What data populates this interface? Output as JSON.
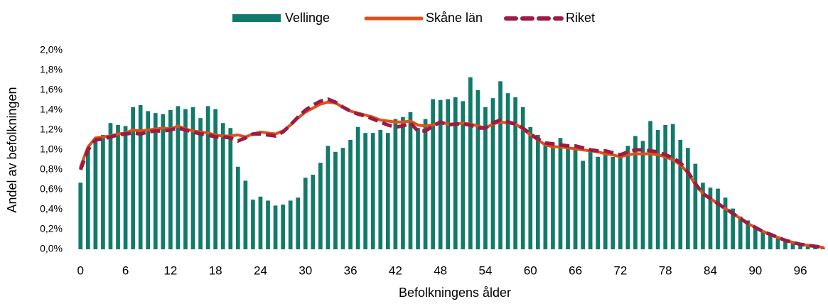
{
  "chart_data": {
    "type": "bar",
    "x_label": "Befolkningens ålder",
    "y_label": "Andel av befolkningen",
    "categories": [
      "0",
      null,
      null,
      null,
      null,
      null,
      "6",
      null,
      null,
      null,
      null,
      null,
      "12",
      null,
      null,
      null,
      null,
      null,
      "18",
      null,
      null,
      null,
      null,
      null,
      "24",
      null,
      null,
      null,
      null,
      null,
      "30",
      null,
      null,
      null,
      null,
      null,
      "36",
      null,
      null,
      null,
      null,
      null,
      "42",
      null,
      null,
      null,
      null,
      null,
      "48",
      null,
      null,
      null,
      null,
      null,
      "54",
      null,
      null,
      null,
      null,
      null,
      "60",
      null,
      null,
      null,
      null,
      null,
      "66",
      null,
      null,
      null,
      null,
      null,
      "72",
      null,
      null,
      null,
      null,
      null,
      "78",
      null,
      null,
      null,
      null,
      null,
      "84",
      null,
      null,
      null,
      null,
      null,
      "90",
      null,
      null,
      null,
      null,
      null,
      "96",
      null,
      null,
      null
    ],
    "ylim": [
      0,
      2
    ],
    "yticks": [
      {
        "value": 0,
        "label": "0,0%"
      },
      {
        "value": 0.2,
        "label": "0,2%"
      },
      {
        "value": 0.4,
        "label": "0,4%"
      },
      {
        "value": 0.6,
        "label": "0,6%"
      },
      {
        "value": 0.8,
        "label": "0,8%"
      },
      {
        "value": 1,
        "label": "1,0%"
      },
      {
        "value": 1.2,
        "label": "1,2%"
      },
      {
        "value": 1.4,
        "label": "1,4%"
      },
      {
        "value": 1.6,
        "label": "1,6%"
      },
      {
        "value": 1.8,
        "label": "1,8%"
      },
      {
        "value": 2,
        "label": "2,0%"
      }
    ],
    "legend": "top",
    "series": [
      {
        "name": "Vellinge",
        "type": "bar",
        "color": "#127a6b",
        "values": [
          0.67,
          1.02,
          1.1,
          1.15,
          1.27,
          1.25,
          1.24,
          1.43,
          1.45,
          1.39,
          1.37,
          1.36,
          1.4,
          1.44,
          1.41,
          1.43,
          1.32,
          1.44,
          1.41,
          1.27,
          1.22,
          0.83,
          0.69,
          0.5,
          0.53,
          0.49,
          0.44,
          0.45,
          0.49,
          0.52,
          0.72,
          0.75,
          0.87,
          1.04,
          0.98,
          1.02,
          1.1,
          1.23,
          1.17,
          1.17,
          1.2,
          1.17,
          1.31,
          1.33,
          1.38,
          1.22,
          1.31,
          1.51,
          1.5,
          1.51,
          1.53,
          1.49,
          1.73,
          1.6,
          1.43,
          1.52,
          1.69,
          1.57,
          1.53,
          1.43,
          1.23,
          1.15,
          1.07,
          1.05,
          1.12,
          1.03,
          1.03,
          0.89,
          0.98,
          0.93,
          0.96,
          0.93,
          0.94,
          1.04,
          1.14,
          1.09,
          1.29,
          1.2,
          1.25,
          1.26,
          1.1,
          1.02,
          0.86,
          0.67,
          0.62,
          0.61,
          0.52,
          0.41,
          0.33,
          0.29,
          0.23,
          0.19,
          0.16,
          0.13,
          0.1,
          0.08,
          0.06,
          0.04,
          0.03,
          0.02
        ]
      },
      {
        "name": "Skåne län",
        "type": "line",
        "color": "#e0501b",
        "values": [
          0.83,
          1.03,
          1.12,
          1.13,
          1.14,
          1.16,
          1.17,
          1.2,
          1.19,
          1.2,
          1.21,
          1.22,
          1.21,
          1.24,
          1.21,
          1.19,
          1.18,
          1.17,
          1.15,
          1.14,
          1.14,
          1.15,
          1.13,
          1.16,
          1.18,
          1.17,
          1.16,
          1.19,
          1.25,
          1.32,
          1.38,
          1.42,
          1.46,
          1.48,
          1.47,
          1.43,
          1.39,
          1.37,
          1.35,
          1.33,
          1.3,
          1.29,
          1.28,
          1.28,
          1.29,
          1.25,
          1.24,
          1.25,
          1.28,
          1.26,
          1.26,
          1.27,
          1.26,
          1.24,
          1.22,
          1.26,
          1.28,
          1.27,
          1.26,
          1.21,
          1.15,
          1.1,
          1.05,
          1.03,
          1.03,
          1.02,
          1.01,
          1.0,
          0.99,
          0.98,
          0.96,
          0.95,
          0.93,
          0.95,
          0.96,
          0.96,
          0.96,
          0.95,
          0.93,
          0.9,
          0.85,
          0.77,
          0.65,
          0.56,
          0.51,
          0.46,
          0.41,
          0.36,
          0.31,
          0.26,
          0.22,
          0.18,
          0.15,
          0.12,
          0.09,
          0.07,
          0.05,
          0.04,
          0.03,
          0.02
        ]
      },
      {
        "name": "Riket",
        "type": "line",
        "dashed": true,
        "color": "#9b1b43",
        "values": [
          0.8,
          1.0,
          1.1,
          1.11,
          1.13,
          1.15,
          1.16,
          1.17,
          1.16,
          1.18,
          1.19,
          1.19,
          1.2,
          1.22,
          1.2,
          1.18,
          1.16,
          1.15,
          1.13,
          1.13,
          1.12,
          1.09,
          1.12,
          1.16,
          1.16,
          1.15,
          1.14,
          1.18,
          1.25,
          1.33,
          1.4,
          1.45,
          1.49,
          1.51,
          1.48,
          1.43,
          1.39,
          1.36,
          1.34,
          1.31,
          1.28,
          1.25,
          1.23,
          1.24,
          1.27,
          1.19,
          1.19,
          1.24,
          1.28,
          1.25,
          1.26,
          1.26,
          1.25,
          1.22,
          1.22,
          1.27,
          1.3,
          1.28,
          1.26,
          1.22,
          1.16,
          1.11,
          1.07,
          1.06,
          1.05,
          1.04,
          1.04,
          1.02,
          1.0,
          0.99,
          0.99,
          0.97,
          0.95,
          0.98,
          1.0,
          1.0,
          0.99,
          0.98,
          0.95,
          0.92,
          0.87,
          0.78,
          0.66,
          0.56,
          0.51,
          0.46,
          0.41,
          0.36,
          0.31,
          0.26,
          0.22,
          0.18,
          0.15,
          0.12,
          0.09,
          0.07,
          0.05,
          0.04,
          0.03,
          0.02
        ]
      }
    ]
  }
}
